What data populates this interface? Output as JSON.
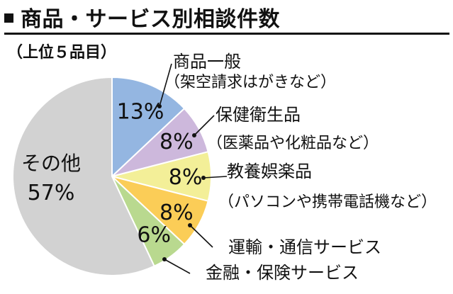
{
  "header": {
    "title": "商品・サービス別相談件数",
    "subtitle": "（上位５品目）"
  },
  "chart_data": {
    "type": "pie",
    "title": "商品・サービス別相談件数",
    "subtitle": "（上位５品目）",
    "slices": [
      {
        "label": "商品一般",
        "sublabel": "（架空請求はがきなど）",
        "value": 13,
        "value_label": "13%",
        "color": "#94b6e1"
      },
      {
        "label": "保健衛生品",
        "sublabel": "（医薬品や化粧品など）",
        "value": 8,
        "value_label": "8%",
        "color": "#cdb8dc"
      },
      {
        "label": "教養娯楽品",
        "sublabel": "（パソコンや携帯電話機など）",
        "value": 8,
        "value_label": "8%",
        "color": "#f3ef98"
      },
      {
        "label": "運輸・通信サービス",
        "sublabel": "",
        "value": 8,
        "value_label": "8%",
        "color": "#fbcd57"
      },
      {
        "label": "金融・保険サービス",
        "sublabel": "",
        "value": 6,
        "value_label": "6%",
        "color": "#b9d98f"
      },
      {
        "label": "その他",
        "sublabel": "",
        "value": 57,
        "value_label": "57%",
        "color": "#d2d2d2"
      }
    ]
  }
}
